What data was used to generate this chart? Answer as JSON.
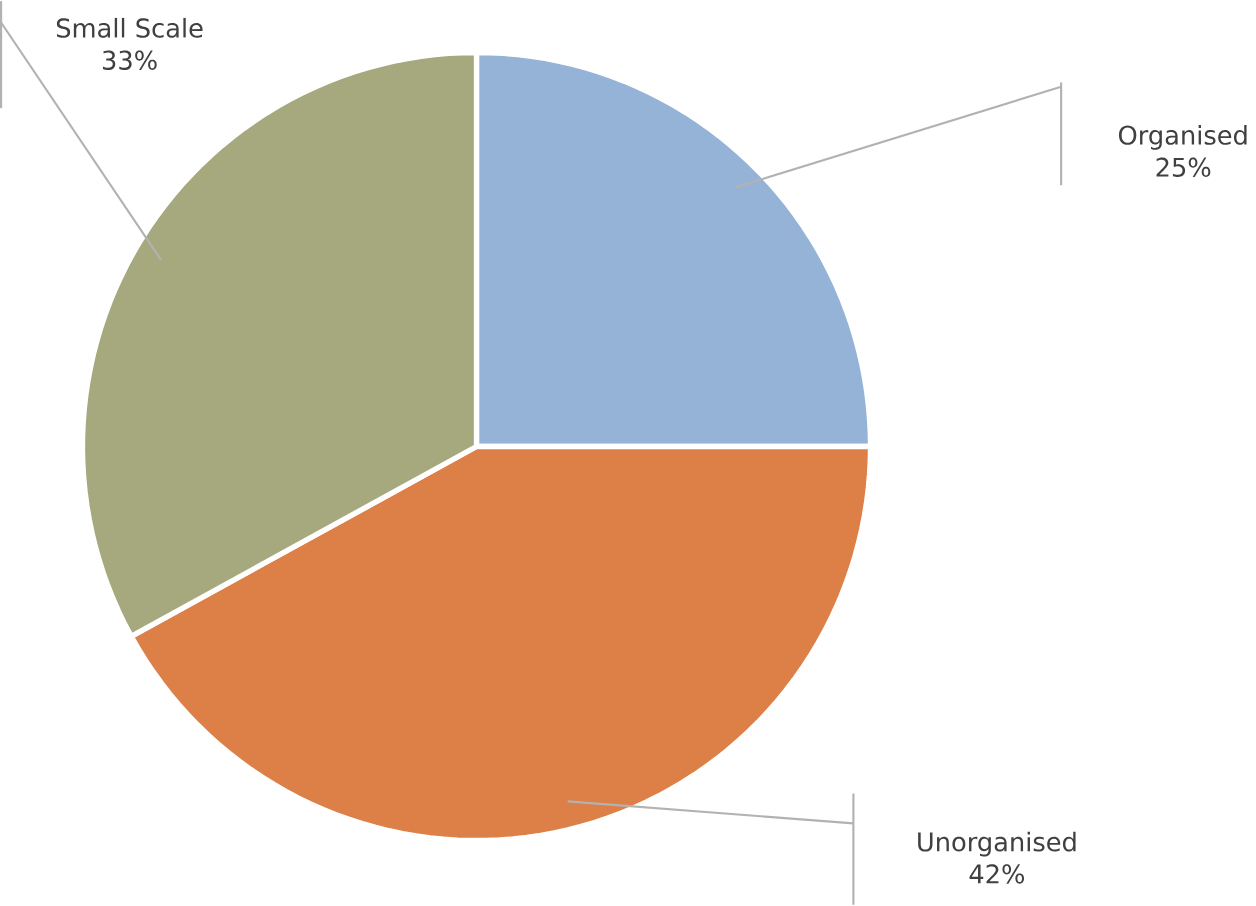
{
  "chart_data": {
    "type": "pie",
    "categories": [
      "Organised",
      "Unorganised",
      "Small Scale"
    ],
    "values": [
      25,
      42,
      33
    ],
    "colors": [
      "#95b3d7",
      "#dd8047",
      "#a5a97d"
    ],
    "value_labels": [
      "25%",
      "42%",
      "33%"
    ]
  }
}
